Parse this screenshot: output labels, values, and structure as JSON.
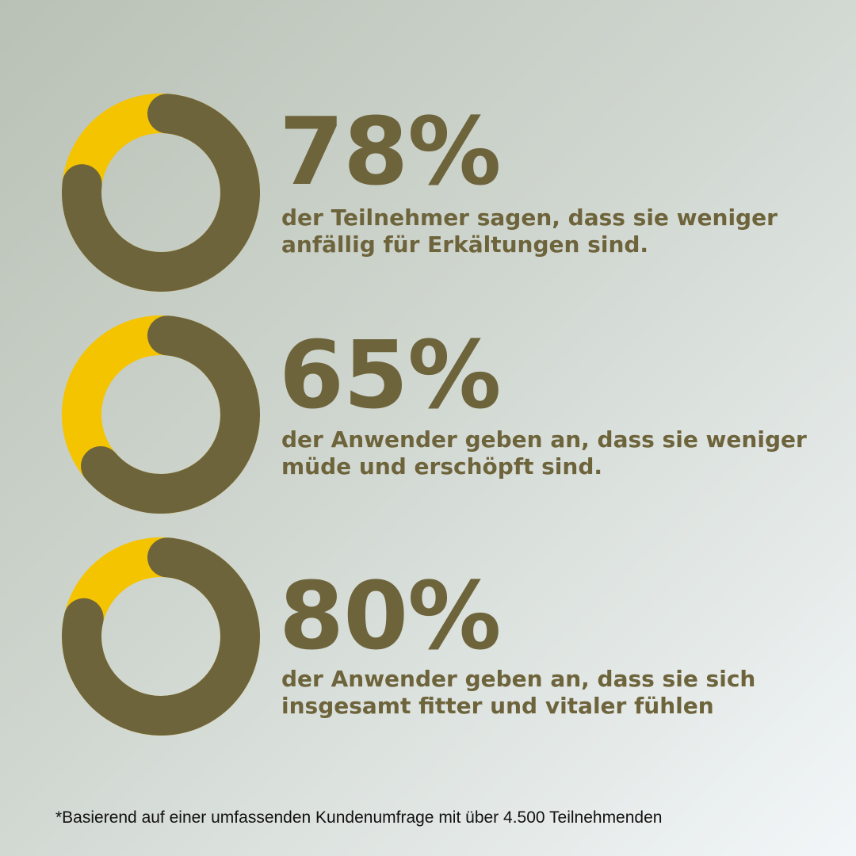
{
  "colors": {
    "accent": "#f5c400",
    "primary": "#6e643c",
    "footnote": "#111111"
  },
  "chart_data": [
    {
      "type": "pie",
      "percent_label": "78%",
      "value": 78,
      "description_lines": [
        "der Teilnehmer sagen, dass sie weniger",
        "anfällig für Erkältungen sind."
      ]
    },
    {
      "type": "pie",
      "percent_label": "65%",
      "value": 65,
      "description_lines": [
        "der Anwender geben an, dass sie weniger",
        "müde und erschöpft sind."
      ]
    },
    {
      "type": "pie",
      "percent_label": "80%",
      "value": 80,
      "description_lines": [
        "der Anwender geben an, dass sie sich",
        "insgesamt fitter und vitaler fühlen"
      ]
    }
  ],
  "footnote": "*Basierend auf einer umfassenden Kundenumfrage mit über 4.500 Teilnehmenden"
}
